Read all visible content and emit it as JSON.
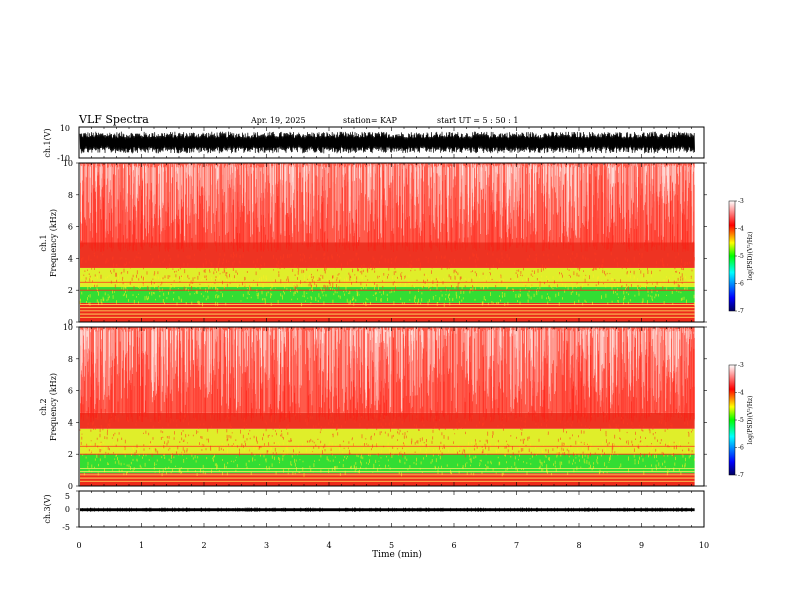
{
  "header": {
    "title": "VLF Spectra",
    "date": "Apr. 19, 2025",
    "station": "station= KAP",
    "start": "start  UT  =   5  : 50 : 1"
  },
  "chart_data": [
    {
      "type": "line",
      "name": "ch1-waveform",
      "ylabel": "ch.1(V)",
      "ylim": [
        -10,
        10
      ],
      "ytick_labels": [
        "10",
        "-10"
      ],
      "envelope": [
        -7,
        7
      ]
    },
    {
      "type": "heatmap",
      "name": "ch1-spectrogram",
      "ylabel_lines": [
        "ch.1",
        "Frequency  (kHz)"
      ],
      "ylim": [
        0,
        10
      ],
      "ytick_labels": [
        "0",
        "2",
        "4",
        "6",
        "8",
        "10"
      ],
      "colorbar": {
        "label": "log(PSD)(V²/Hz)",
        "range": [
          -7,
          -3
        ],
        "tick_labels": [
          "-3",
          "-4",
          "-5",
          "-6",
          "-7"
        ],
        "colors": [
          "#000080",
          "#0000ff",
          "#00ffff",
          "#00ff00",
          "#ffff00",
          "#ff0000",
          "#ffffff"
        ]
      },
      "bands": [
        {
          "from": 1.2,
          "to": 2.2,
          "level": "green"
        },
        {
          "from": 2.2,
          "to": 3.4,
          "level": "yellow"
        },
        {
          "from": 3.4,
          "to": 5.0,
          "level": "red-yellow"
        },
        {
          "from": 5.0,
          "to": 10.0,
          "level": "red-white"
        },
        {
          "from": 0.0,
          "to": 1.2,
          "level": "red-banded"
        }
      ]
    },
    {
      "type": "heatmap",
      "name": "ch2-spectrogram",
      "ylabel_lines": [
        "ch.2",
        "Frequency  (kHz)"
      ],
      "ylim": [
        0,
        10
      ],
      "ytick_labels": [
        "0",
        "2",
        "4",
        "6",
        "8",
        "10"
      ],
      "colorbar": {
        "label": "log(PSD)(V²/Hz)",
        "range": [
          -7,
          -3
        ],
        "tick_labels": [
          "-3",
          "-4",
          "-5",
          "-6",
          "-7"
        ],
        "colors": [
          "#000080",
          "#0000ff",
          "#00ffff",
          "#00ff00",
          "#ffff00",
          "#ff0000",
          "#ffffff"
        ]
      },
      "bands": [
        {
          "from": 0.8,
          "to": 2.0,
          "level": "green"
        },
        {
          "from": 2.0,
          "to": 3.6,
          "level": "yellow"
        },
        {
          "from": 3.6,
          "to": 4.6,
          "level": "red-yellow"
        },
        {
          "from": 4.6,
          "to": 10.0,
          "level": "red-white"
        },
        {
          "from": 0.0,
          "to": 0.8,
          "level": "red-banded"
        }
      ]
    },
    {
      "type": "line",
      "name": "ch3-waveform",
      "ylabel": "ch.3(V)",
      "ylim": [
        -5,
        5
      ],
      "ytick_labels": [
        "5",
        "0",
        "-5"
      ],
      "band": [
        -0.6,
        0.2
      ]
    }
  ],
  "xaxis": {
    "label": "Time  (min)",
    "xlim": [
      0,
      10
    ],
    "data_end": 9.85,
    "tick_labels": [
      "0",
      "1",
      "2",
      "3",
      "4",
      "5",
      "6",
      "7",
      "8",
      "9",
      "10"
    ]
  }
}
